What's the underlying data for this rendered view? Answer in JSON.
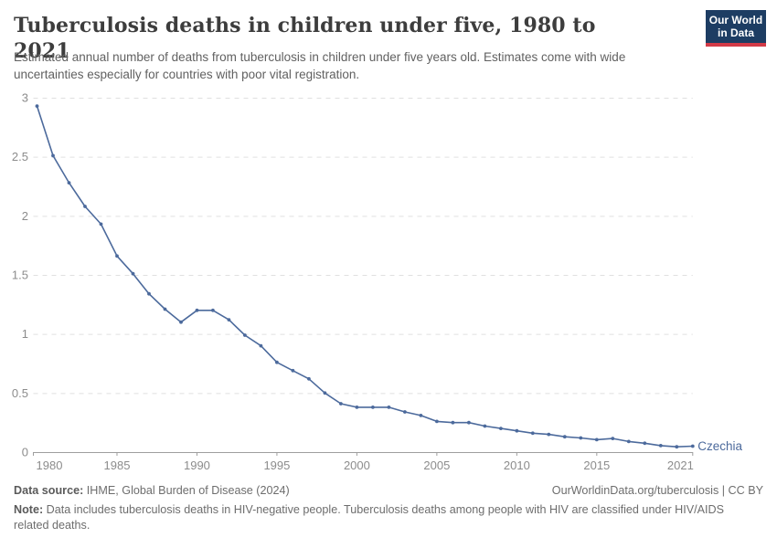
{
  "header": {
    "title": "Tuberculosis deaths in children under five, 1980 to 2021",
    "subtitle": "Estimated annual number of deaths from tuberculosis in children under five years old. Estimates come with wide uncertainties especially for countries with poor vital registration.",
    "logo": {
      "line1": "Our World",
      "line2": "in Data"
    }
  },
  "chart_data": {
    "type": "line",
    "title": "Tuberculosis deaths in children under five, 1980 to 2021",
    "xlabel": "",
    "ylabel": "",
    "xlim": [
      1980,
      2021
    ],
    "ylim": [
      0,
      3
    ],
    "x_ticks": [
      1980,
      1985,
      1990,
      1995,
      2000,
      2005,
      2010,
      2015,
      2021
    ],
    "y_ticks": [
      0,
      0.5,
      1,
      1.5,
      2,
      2.5,
      3
    ],
    "grid": "horizontal-dashed",
    "legend_position": "end-of-line-label",
    "years": [
      1980,
      1981,
      1982,
      1983,
      1984,
      1985,
      1986,
      1987,
      1988,
      1989,
      1990,
      1991,
      1992,
      1993,
      1994,
      1995,
      1996,
      1997,
      1998,
      1999,
      2000,
      2001,
      2002,
      2003,
      2004,
      2005,
      2006,
      2007,
      2008,
      2009,
      2010,
      2011,
      2012,
      2013,
      2014,
      2015,
      2016,
      2017,
      2018,
      2019,
      2020,
      2021
    ],
    "series": [
      {
        "name": "Czechia",
        "color": "#4c6a9c",
        "values": [
          2.93,
          2.51,
          2.28,
          2.08,
          1.93,
          1.66,
          1.51,
          1.34,
          1.21,
          1.1,
          1.2,
          1.2,
          1.12,
          0.99,
          0.9,
          0.76,
          0.69,
          0.62,
          0.5,
          0.41,
          0.38,
          0.38,
          0.38,
          0.34,
          0.31,
          0.26,
          0.25,
          0.25,
          0.22,
          0.2,
          0.18,
          0.16,
          0.15,
          0.13,
          0.12,
          0.105,
          0.115,
          0.09,
          0.075,
          0.055,
          0.045,
          0.05
        ]
      }
    ]
  },
  "footer": {
    "source_label": "Data source:",
    "source_text": " IHME, Global Burden of Disease (2024)",
    "link_text": "OurWorldinData.org/tuberculosis | CC BY",
    "note_label": "Note:",
    "note_text": " Data includes tuberculosis deaths in HIV-negative people. Tuberculosis deaths among people with HIV are classified under HIV/AIDS related deaths."
  },
  "colors": {
    "line": "#4c6a9c",
    "grid": "#e0e0e0",
    "axis": "#9e9e9e",
    "axis_label": "#8c8c8c",
    "title": "#3d3d3d",
    "subtitle": "#616161",
    "logo_bg": "#1d3d63",
    "logo_red": "#d23a47"
  }
}
